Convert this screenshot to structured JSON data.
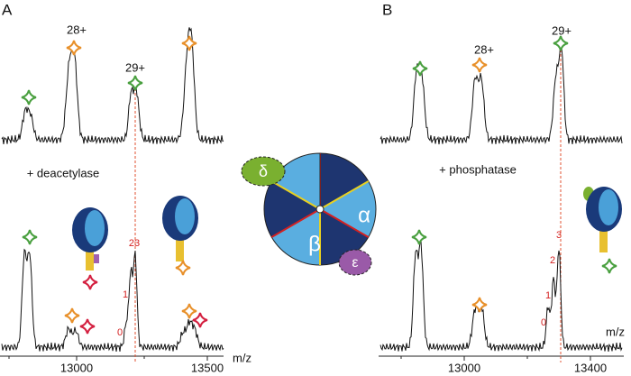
{
  "panels": [
    {
      "label": "A",
      "charge_labels": [
        "28+",
        "29+"
      ],
      "treatment": "+ deacetylase",
      "peak_labels": [
        "0",
        "1",
        "23"
      ],
      "axis_label": "m/z",
      "x_ticks": [
        "13000",
        "13500"
      ]
    },
    {
      "label": "B",
      "charge_labels": [
        "28+",
        "29+"
      ],
      "treatment": "+ phosphatase",
      "peak_labels": [
        "0",
        "1",
        "2",
        "3"
      ],
      "axis_label": "m/z",
      "x_ticks": [
        "13000",
        "13400"
      ]
    }
  ],
  "diagram": {
    "subunits": [
      "δ",
      "α",
      "β",
      "ε"
    ]
  }
}
